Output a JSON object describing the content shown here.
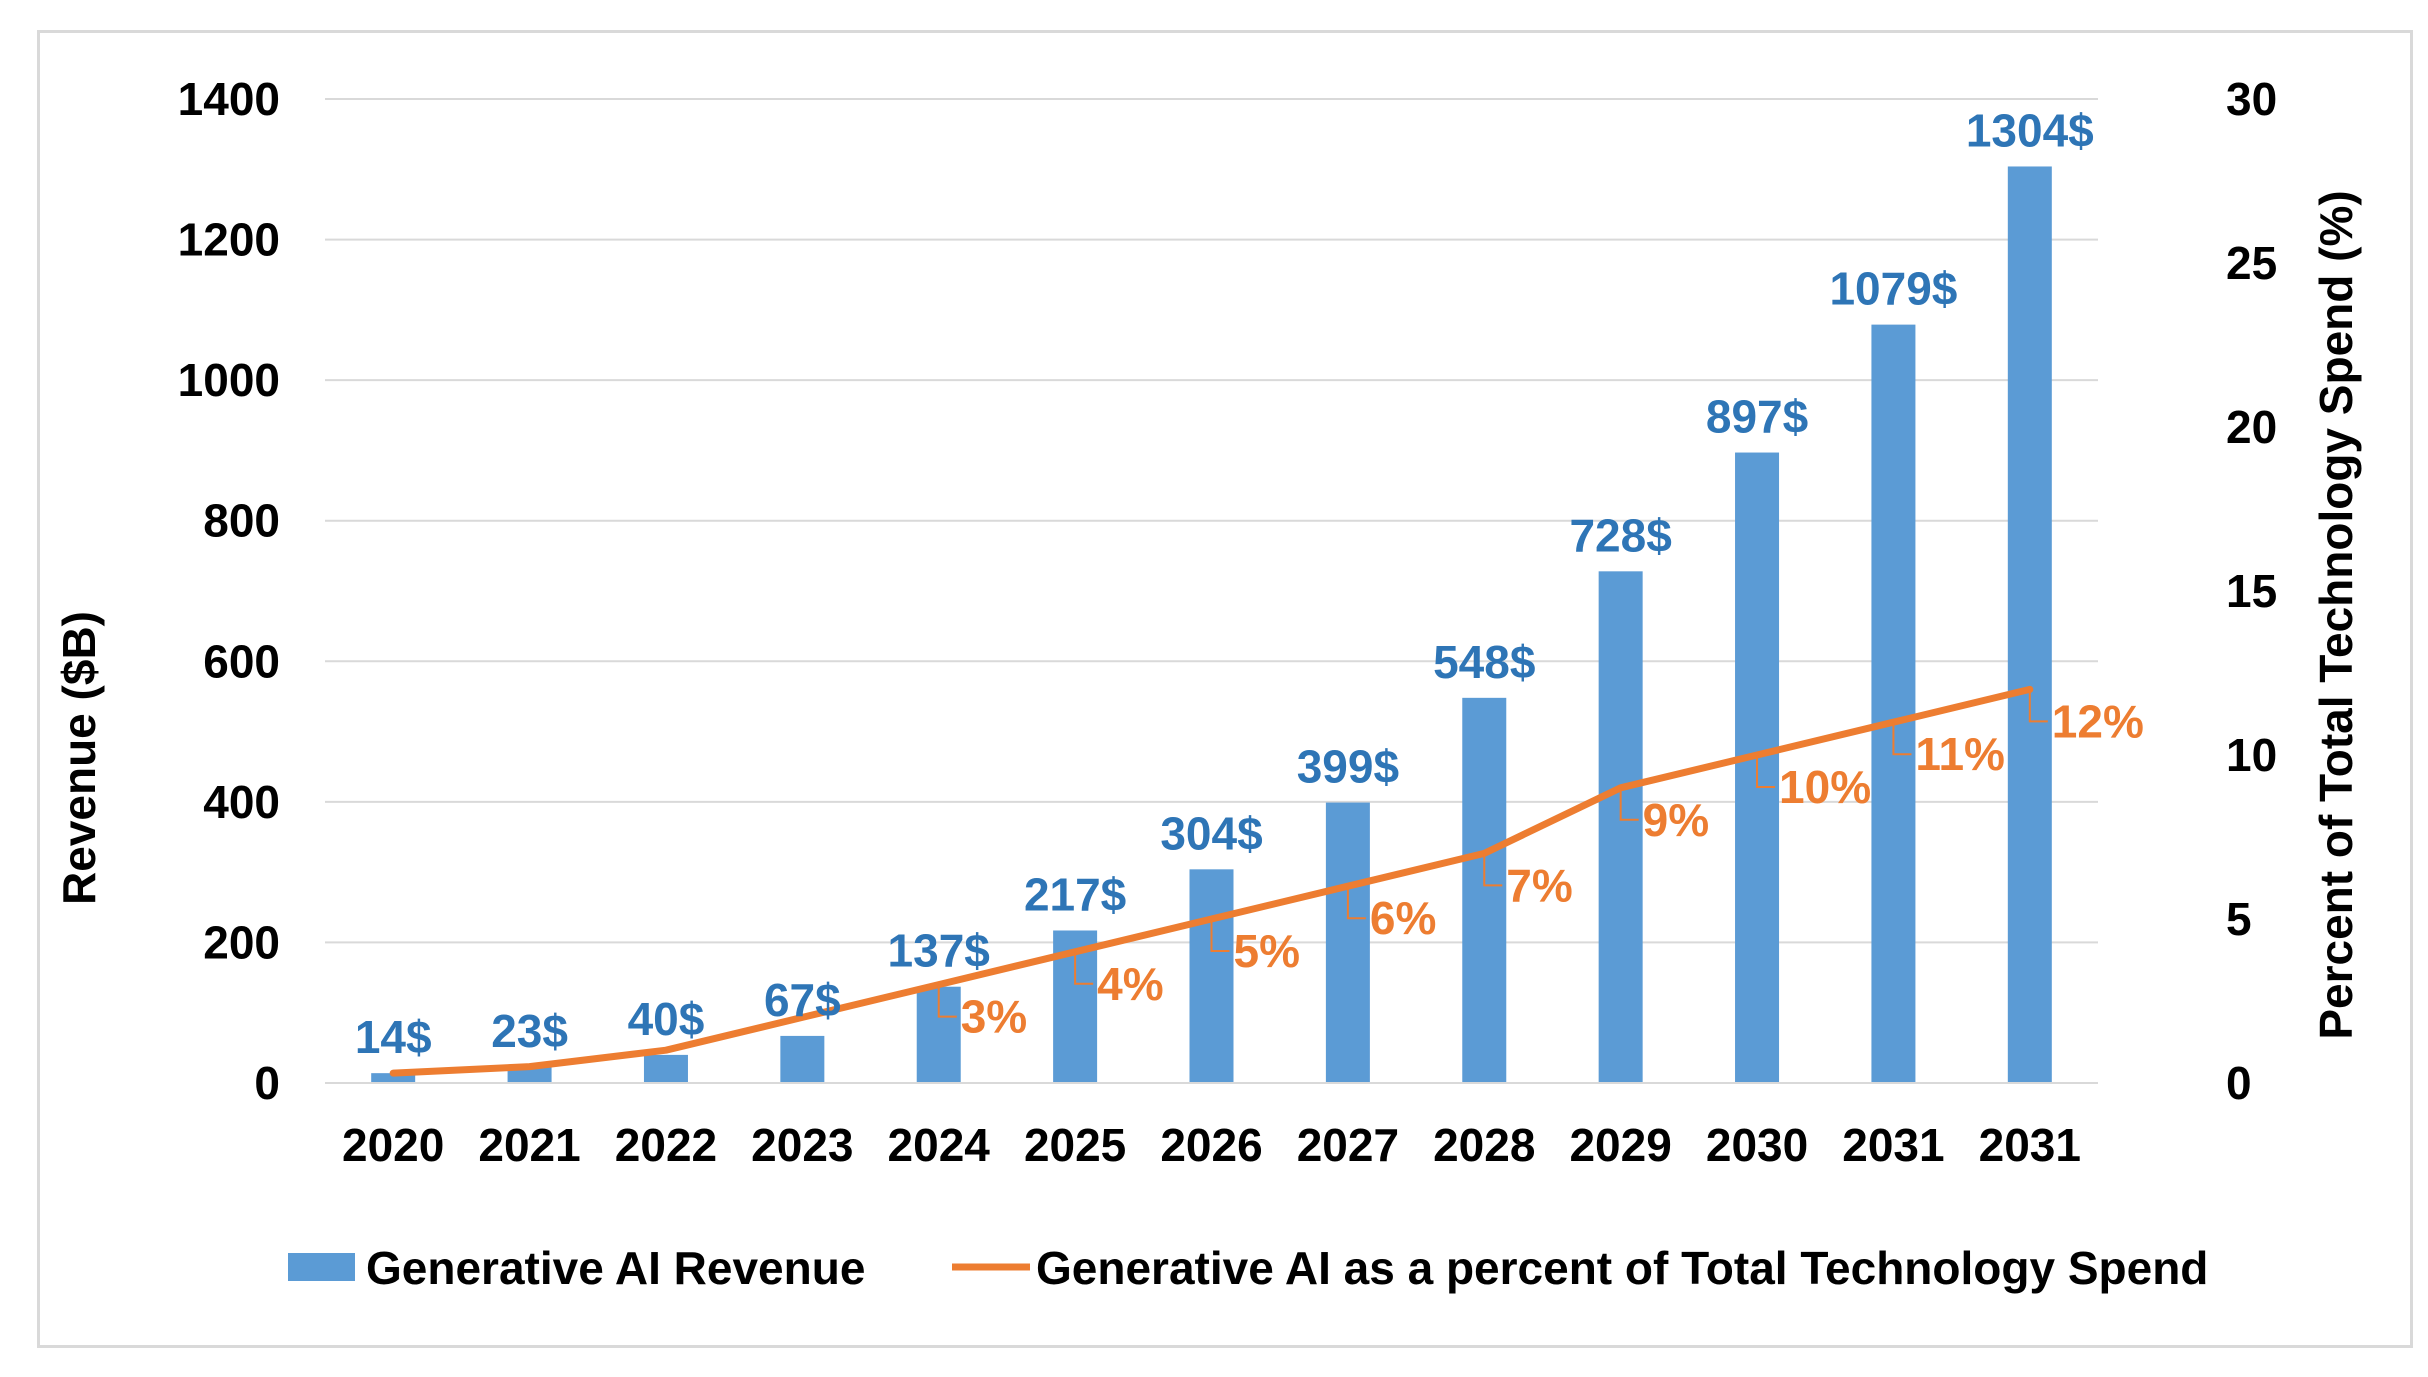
{
  "colors": {
    "bar": "#5b9bd5",
    "bar_label": "#2e75b6",
    "line": "#ed7d31",
    "grid": "#d9d9d9",
    "text": "#000000"
  },
  "chart_data": {
    "type": "bar",
    "title": "",
    "categories": [
      "2020",
      "2021",
      "2022",
      "2023",
      "2024",
      "2025",
      "2026",
      "2027",
      "2028",
      "2029",
      "2030",
      "2031",
      "2031"
    ],
    "series": [
      {
        "name": "Generative AI Revenue",
        "axis": "left",
        "values": [
          14,
          23,
          40,
          67,
          137,
          217,
          304,
          399,
          548,
          728,
          897,
          1079,
          1304
        ],
        "labels": [
          "14$",
          "23$",
          "40$",
          "67$",
          "137$",
          "217$",
          "304$",
          "399$",
          "548$",
          "728$",
          "897$",
          "1079$",
          "1304$"
        ]
      },
      {
        "name": "Generative AI as a percent of Total Technology Spend",
        "type": "line",
        "axis": "right",
        "values": [
          0.3,
          0.5,
          1,
          2,
          3,
          4,
          5,
          6,
          7,
          9,
          10,
          11,
          12
        ],
        "labels": [
          "",
          "",
          "",
          "",
          "3%",
          "4%",
          "5%",
          "6%",
          "7%",
          "9%",
          "10%",
          "11%",
          "12%"
        ]
      }
    ],
    "ylabel": "Revenue ($B)",
    "ylim": [
      0,
      1400
    ],
    "yticks": [
      "0",
      "200",
      "400",
      "600",
      "800",
      "1000",
      "1200",
      "1400"
    ],
    "y2label": "Percent of Total Technology Spend (%)",
    "y2lim": [
      0,
      30
    ],
    "y2ticks": [
      "0",
      "5",
      "10",
      "15",
      "20",
      "25",
      "30"
    ],
    "legend": {
      "position": "bottom",
      "entries": [
        "Generative AI Revenue",
        "Generative AI as a percent of Total Technology Spend"
      ]
    },
    "grid": true
  }
}
